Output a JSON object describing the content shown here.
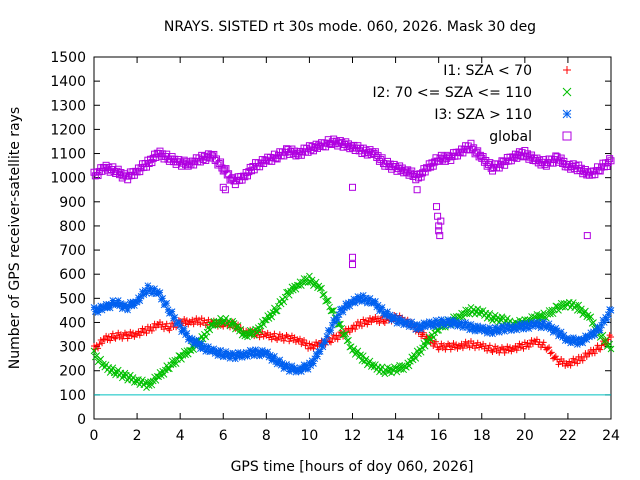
{
  "chart_data": {
    "type": "scatter",
    "title": "NRAYS. SISTED rt 30s mode. 060, 2026. Mask 30 deg",
    "xlabel": "GPS time [hours of doy 060, 2026]",
    "ylabel": "Number of GPS receiver-satellite rays",
    "xlim": [
      0,
      24
    ],
    "ylim": [
      0,
      1500
    ],
    "xticks": [
      0,
      2,
      4,
      6,
      8,
      10,
      12,
      14,
      16,
      18,
      20,
      22,
      24
    ],
    "yticks": [
      0,
      100,
      200,
      300,
      400,
      500,
      600,
      700,
      800,
      900,
      1000,
      1100,
      1200,
      1300,
      1400,
      1500
    ],
    "reference_line": {
      "y": 100,
      "color": "#00c0c0"
    },
    "legend_position": "top-right",
    "series": [
      {
        "name": "I1: SZA < 70",
        "color": "#ff0000",
        "marker": "plus",
        "x": [
          0,
          0.5,
          1,
          1.5,
          2,
          2.5,
          3,
          3.5,
          4,
          4.5,
          5,
          5.5,
          6,
          6.5,
          7,
          7.5,
          8,
          8.5,
          9,
          9.5,
          10,
          10.5,
          11,
          11.5,
          12,
          12.5,
          13,
          13.5,
          14,
          14.5,
          15,
          15.5,
          16,
          16.5,
          17,
          17.5,
          18,
          18.5,
          19,
          19.5,
          20,
          20.5,
          21,
          21.5,
          22,
          22.5,
          23,
          23.5,
          24
        ],
        "y": [
          290,
          330,
          345,
          345,
          355,
          370,
          390,
          380,
          400,
          405,
          405,
          395,
          395,
          390,
          360,
          355,
          345,
          340,
          335,
          330,
          300,
          310,
          330,
          350,
          380,
          400,
          410,
          410,
          420,
          410,
          370,
          330,
          300,
          300,
          305,
          310,
          300,
          290,
          285,
          295,
          305,
          320,
          300,
          240,
          230,
          245,
          270,
          300,
          340
        ]
      },
      {
        "name": "I2: 70 <= SZA <= 110",
        "color": "#00c000",
        "marker": "cross",
        "x": [
          0,
          0.5,
          1,
          1.5,
          2,
          2.5,
          3,
          3.5,
          4,
          4.5,
          5,
          5.5,
          6,
          6.5,
          7,
          7.5,
          8,
          8.5,
          9,
          9.5,
          10,
          10.5,
          11,
          11.5,
          12,
          12.5,
          13,
          13.5,
          14,
          14.5,
          15,
          15.5,
          16,
          16.5,
          17,
          17.5,
          18,
          18.5,
          19,
          19.5,
          20,
          20.5,
          21,
          21.5,
          22,
          22.5,
          23,
          23.5,
          24
        ],
        "y": [
          270,
          215,
          195,
          175,
          160,
          140,
          175,
          220,
          255,
          290,
          330,
          390,
          410,
          390,
          350,
          360,
          410,
          460,
          520,
          560,
          580,
          540,
          460,
          370,
          290,
          250,
          215,
          200,
          205,
          220,
          270,
          320,
          380,
          400,
          430,
          450,
          440,
          420,
          410,
          395,
          400,
          420,
          430,
          460,
          480,
          460,
          420,
          350,
          290
        ]
      },
      {
        "name": "I3: SZA > 110",
        "color": "#0060f0",
        "marker": "star",
        "x": [
          0,
          0.5,
          1,
          1.5,
          2,
          2.5,
          3,
          3.5,
          4,
          4.5,
          5,
          5.5,
          6,
          6.5,
          7,
          7.5,
          8,
          8.5,
          9,
          9.5,
          10,
          10.5,
          11,
          11.5,
          12,
          12.5,
          13,
          13.5,
          14,
          14.5,
          15,
          15.5,
          16,
          16.5,
          17,
          17.5,
          18,
          18.5,
          19,
          19.5,
          20,
          20.5,
          21,
          21.5,
          22,
          22.5,
          23,
          23.5,
          24
        ],
        "y": [
          450,
          460,
          485,
          460,
          490,
          540,
          520,
          450,
          380,
          330,
          300,
          280,
          270,
          260,
          270,
          275,
          270,
          240,
          210,
          205,
          220,
          280,
          380,
          450,
          490,
          500,
          480,
          440,
          410,
          400,
          380,
          390,
          400,
          400,
          395,
          380,
          370,
          365,
          375,
          380,
          385,
          390,
          390,
          360,
          330,
          320,
          340,
          380,
          450
        ]
      },
      {
        "name": "global",
        "color": "#b000e0",
        "marker": "square",
        "x": [
          0,
          0.5,
          1,
          1.5,
          2,
          2.5,
          3,
          3.5,
          4,
          4.5,
          5,
          5.5,
          6,
          6.5,
          7,
          7.5,
          8,
          8.5,
          9,
          9.5,
          10,
          10.5,
          11,
          11.5,
          12,
          12.5,
          13,
          13.5,
          14,
          14.5,
          15,
          15.5,
          16,
          16.5,
          17,
          17.5,
          18,
          18.5,
          19,
          19.5,
          20,
          20.5,
          21,
          21.5,
          22,
          22.5,
          23,
          23.5,
          24
        ],
        "y": [
          1010,
          1040,
          1030,
          1000,
          1030,
          1060,
          1100,
          1080,
          1060,
          1060,
          1080,
          1090,
          1040,
          980,
          1010,
          1050,
          1070,
          1090,
          1110,
          1100,
          1120,
          1130,
          1150,
          1140,
          1130,
          1110,
          1100,
          1060,
          1040,
          1030,
          1000,
          1040,
          1080,
          1080,
          1110,
          1130,
          1080,
          1040,
          1060,
          1090,
          1100,
          1070,
          1060,
          1080,
          1050,
          1040,
          1010,
          1040,
          1070
        ],
        "outliers_x": [
          6.0,
          6.1,
          12.0,
          12.0,
          12.0,
          15.0,
          15.9,
          15.95,
          16.0,
          16.0,
          16.05,
          16.1,
          22.9
        ],
        "outliers_y": [
          960,
          950,
          960,
          670,
          640,
          950,
          880,
          840,
          800,
          780,
          760,
          820,
          760
        ]
      }
    ]
  }
}
